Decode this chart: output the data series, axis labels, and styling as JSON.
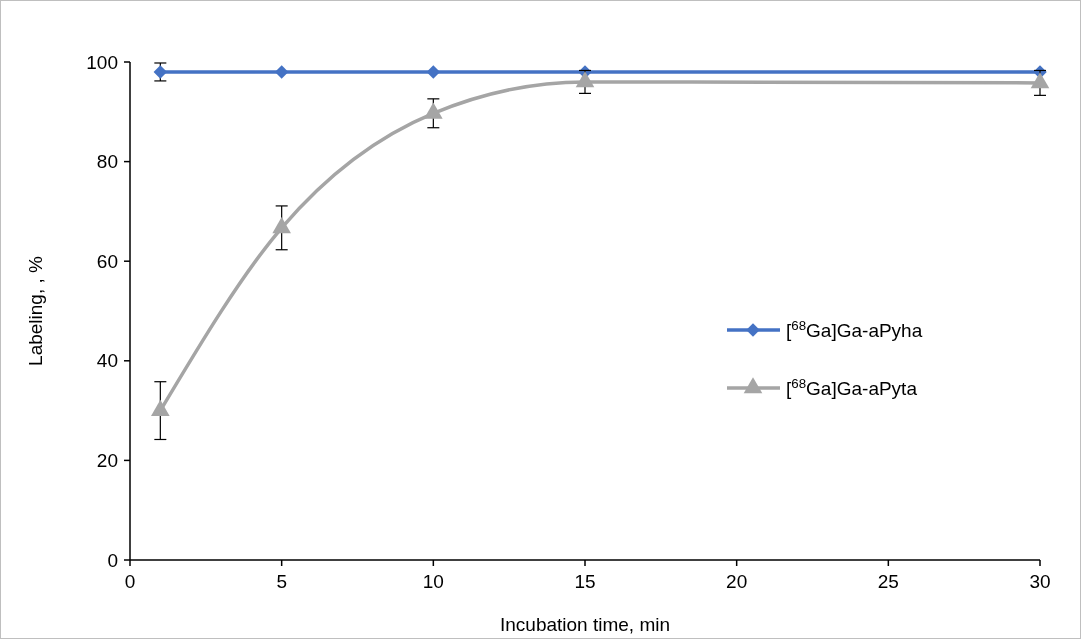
{
  "chart_data": {
    "type": "line",
    "xlabel": "Incubation time, min",
    "ylabel": "Labeling, , %",
    "x": [
      1,
      5,
      10,
      15,
      30
    ],
    "series": [
      {
        "name": "[$^{68}$Ga]Ga-aPyha",
        "color": "#4472c4",
        "marker": "diamond",
        "values": [
          98,
          98,
          98,
          98,
          98
        ],
        "errors": [
          1.8,
          null,
          null,
          null,
          null
        ]
      },
      {
        "name": "[$^{68}$Ga]Ga-aPyta",
        "color": "#a5a5a5",
        "marker": "triangle",
        "values": [
          30,
          66.7,
          89.7,
          96,
          95.8
        ],
        "errors": [
          5.8,
          4.4,
          2.9,
          2.3,
          2.5
        ]
      }
    ],
    "xlim": [
      0,
      30
    ],
    "xticks": [
      0,
      5,
      10,
      15,
      20,
      25,
      30
    ],
    "ylim": [
      0,
      100
    ],
    "yticks": [
      0,
      20,
      40,
      60,
      80,
      100
    ],
    "grid": false,
    "legend": "right"
  }
}
